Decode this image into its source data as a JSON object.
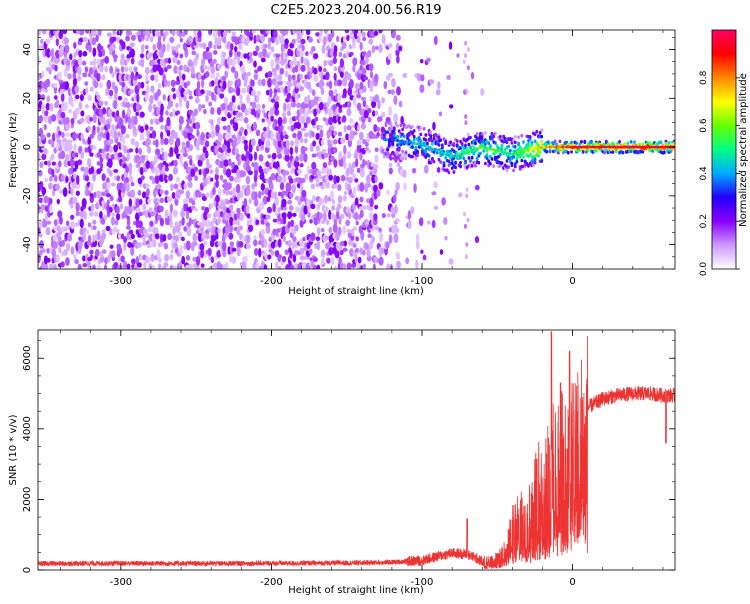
{
  "title": "C2E5.2023.204.00.56.R19",
  "chart_data": [
    {
      "type": "heatmap",
      "xlabel": "Height of straight line (km)",
      "ylabel": "Frequency (Hz)",
      "xlim": [
        -355,
        68
      ],
      "ylim": [
        -50,
        48
      ],
      "x_ticks": [
        -300,
        -200,
        -100,
        0
      ],
      "y_ticks": [
        -40,
        -20,
        0,
        20,
        40
      ],
      "colorbar": {
        "label": "Normalized spectral amplitude",
        "range": [
          0,
          1
        ],
        "ticks": [
          0.0,
          0.2,
          0.4,
          0.6,
          0.8
        ],
        "colors": [
          "#ffffff",
          "#cc99ff",
          "#8800ff",
          "#2200ff",
          "#00aaff",
          "#00ff88",
          "#66ff00",
          "#ffff00",
          "#ff8800",
          "#ff0000",
          "#ff0066"
        ]
      },
      "ridge": [
        {
          "x": -120,
          "f": 3,
          "amp": 0.35
        },
        {
          "x": -100,
          "f": 1,
          "amp": 0.45
        },
        {
          "x": -80,
          "f": -4,
          "amp": 0.45
        },
        {
          "x": -60,
          "f": 0,
          "amp": 0.55
        },
        {
          "x": -40,
          "f": -3,
          "amp": 0.5
        },
        {
          "x": -20,
          "f": 0,
          "amp": 0.75
        },
        {
          "x": 0,
          "f": 0,
          "amp": 0.9
        },
        {
          "x": 30,
          "f": 0,
          "amp": 0.95
        },
        {
          "x": 68,
          "f": 0,
          "amp": 0.95
        }
      ]
    },
    {
      "type": "line",
      "xlabel": "Height of straight line (km)",
      "ylabel": "SNR (10 * v/v)",
      "xlim": [
        -355,
        68
      ],
      "ylim": [
        0,
        6800
      ],
      "x_ticks": [
        -300,
        -200,
        -100,
        0
      ],
      "y_ticks": [
        0,
        2000,
        4000,
        6000
      ],
      "line_color": "#ee3333",
      "series": [
        {
          "x": [
            -355,
            -300,
            -250,
            -200,
            -150,
            -120,
            -100,
            -90,
            -80,
            -70,
            -60,
            -50,
            -45,
            -40,
            -30,
            -25,
            -20,
            -15,
            -10,
            -5,
            0,
            5,
            10,
            20,
            30,
            40,
            50,
            60,
            68
          ],
          "y": [
            180,
            190,
            185,
            190,
            200,
            220,
            270,
            380,
            480,
            450,
            250,
            380,
            720,
            1250,
            1650,
            2200,
            2650,
            3100,
            3300,
            3450,
            3650,
            4050,
            4600,
            4850,
            4950,
            5000,
            5000,
            4950,
            4950
          ]
        }
      ],
      "spikes": [
        {
          "x": -14,
          "y": 6750
        },
        {
          "x": -2,
          "y": 6200
        },
        {
          "x": -8,
          "y": 5300
        },
        {
          "x": -70,
          "y": 1450
        },
        {
          "x": 62,
          "y": 3600
        }
      ]
    }
  ]
}
